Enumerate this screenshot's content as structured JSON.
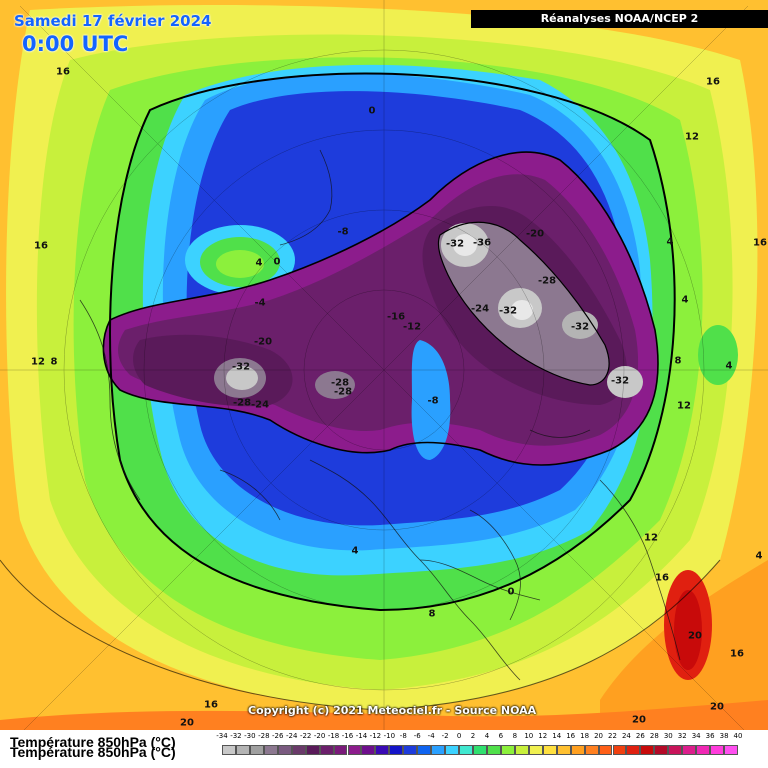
{
  "header": {
    "date": "Samedi 17 février 2024",
    "time": "0:00 UTC",
    "source": "Réanalyses NOAA/NCEP 2"
  },
  "footer": {
    "copyright": "Copyright (c) 2021 Meteociel.fr - Source NOAA",
    "legend_title": "Température 850hPa (°C)"
  },
  "legend": {
    "ticks": [
      "-34",
      "-32",
      "-30",
      "-28",
      "-26",
      "-24",
      "-22",
      "-20",
      "-18",
      "-16",
      "-14",
      "-12",
      "-10",
      "-8",
      "-6",
      "-4",
      "-2",
      "0",
      "2",
      "4",
      "6",
      "8",
      "10",
      "12",
      "14",
      "16",
      "18",
      "20",
      "22",
      "24",
      "26",
      "28",
      "30",
      "32",
      "34",
      "36",
      "38",
      "40"
    ],
    "colors": [
      "#c8c8c8",
      "#b4b4b4",
      "#a0a0a0",
      "#8c7890",
      "#7a5a80",
      "#6a3a6a",
      "#5a1a5a",
      "#6b1f6b",
      "#7a1a7a",
      "#8c1c8c",
      "#6e0e8c",
      "#3a0ab4",
      "#1414c8",
      "#1e3cdc",
      "#0f64f0",
      "#2aa0ff",
      "#3cd2ff",
      "#40e8d0",
      "#30e070",
      "#50e04a",
      "#8cf03c",
      "#c8f03c",
      "#f0f050",
      "#ffe040",
      "#ffc030",
      "#ffa020",
      "#ff8020",
      "#ff6018",
      "#f04010",
      "#e02010",
      "#c80a0a",
      "#b40a28",
      "#c8145a",
      "#dc1e8c",
      "#f028b4",
      "#ff3cdc",
      "#ff50f0"
    ]
  },
  "contour_labels": [
    {
      "text": "16",
      "id": "label-16-a"
    },
    {
      "text": "16",
      "id": "label-16-b"
    },
    {
      "text": "0",
      "id": "label-0-a"
    },
    {
      "text": "16",
      "id": "label-16-c"
    },
    {
      "text": "12",
      "id": "label-12-a"
    },
    {
      "text": "-8",
      "id": "label-m8-a"
    },
    {
      "text": "4",
      "id": "label-4-a"
    },
    {
      "text": "0",
      "id": "label-0-b"
    },
    {
      "text": "-4",
      "id": "label-m4-a"
    },
    {
      "text": "-32",
      "id": "label-m32-a"
    },
    {
      "text": "-36",
      "id": "label-m36-a"
    },
    {
      "text": "-20",
      "id": "label-m20-a"
    },
    {
      "text": "4",
      "id": "label-4-b"
    },
    {
      "text": "16",
      "id": "label-16-d"
    },
    {
      "text": "-28",
      "id": "label-m28-a"
    },
    {
      "text": "-24",
      "id": "label-m24-a"
    },
    {
      "text": "-32",
      "id": "label-m32-b"
    },
    {
      "text": "-32",
      "id": "label-m32-c"
    },
    {
      "text": "-16",
      "id": "label-m16-a"
    },
    {
      "text": "-12",
      "id": "label-m12-a"
    },
    {
      "text": "4",
      "id": "label-4-c"
    },
    {
      "text": "-20",
      "id": "label-m20-b"
    },
    {
      "text": "12",
      "id": "label-12-b"
    },
    {
      "text": "8",
      "id": "label-8-a"
    },
    {
      "text": "8",
      "id": "label-8-b"
    },
    {
      "text": "-32",
      "id": "label-m32-d"
    },
    {
      "text": "-28",
      "id": "label-m28-b"
    },
    {
      "text": "-28",
      "id": "label-m28-c"
    },
    {
      "text": "-32",
      "id": "label-m32-e"
    },
    {
      "text": "4",
      "id": "label-4-d"
    },
    {
      "text": "-28",
      "id": "label-m28-d"
    },
    {
      "text": "-24",
      "id": "label-m24-b"
    },
    {
      "text": "-8",
      "id": "label-m8-b"
    },
    {
      "text": "12",
      "id": "label-12-c"
    },
    {
      "text": "12",
      "id": "label-12-d"
    },
    {
      "text": "4",
      "id": "label-4-e"
    },
    {
      "text": "16",
      "id": "label-16-e"
    },
    {
      "text": "4",
      "id": "label-4-f"
    },
    {
      "text": "0",
      "id": "label-0-c"
    },
    {
      "text": "8",
      "id": "label-8-c"
    },
    {
      "text": "20",
      "id": "label-20-a"
    },
    {
      "text": "16",
      "id": "label-16-f"
    },
    {
      "text": "16",
      "id": "label-16-g"
    },
    {
      "text": "20",
      "id": "label-20-b"
    },
    {
      "text": "20",
      "id": "label-20-c"
    },
    {
      "text": "20",
      "id": "label-20-d"
    }
  ]
}
